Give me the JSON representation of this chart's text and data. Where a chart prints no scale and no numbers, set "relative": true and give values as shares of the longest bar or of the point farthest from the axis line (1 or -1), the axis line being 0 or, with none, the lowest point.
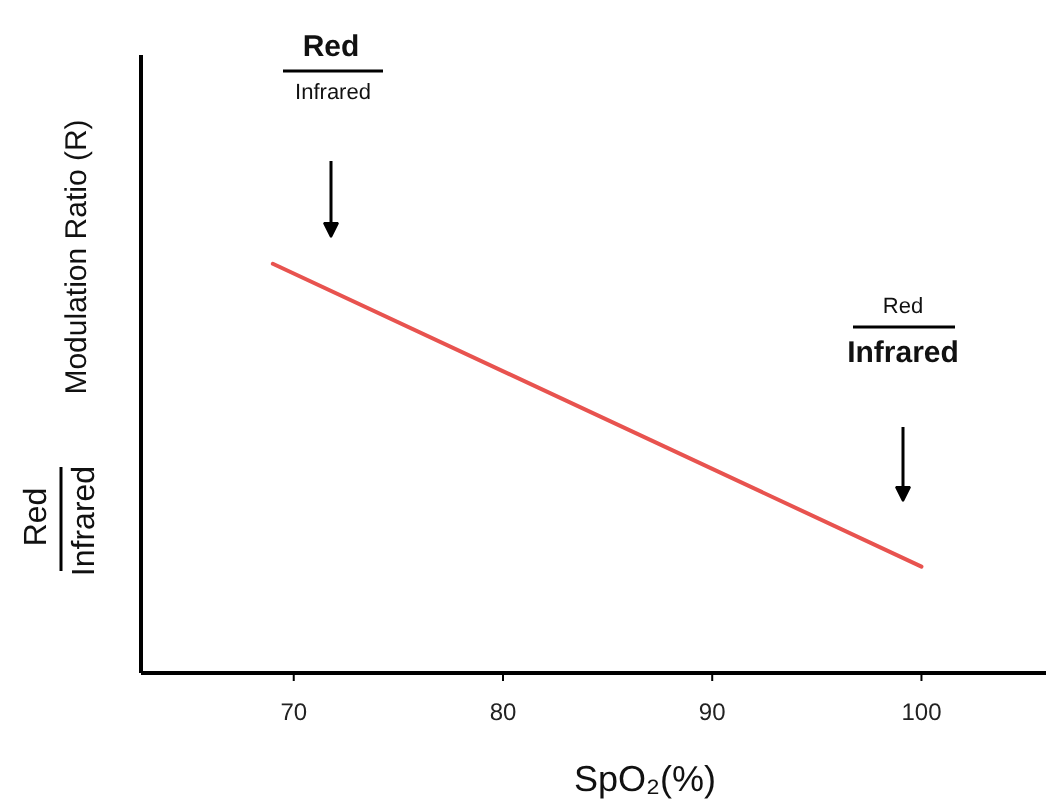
{
  "chart_data": {
    "type": "line",
    "relative": true,
    "xlabel": "SpO₂(%)",
    "ylabel": "Modulation Ratio (R)",
    "annotations": [
      "Red",
      "Infrared",
      "Red",
      "Infrared",
      "Red",
      "Infrared"
    ],
    "xlim": [
      62.7,
      106
    ],
    "xticks": [
      70,
      80,
      90,
      100
    ],
    "grid": false,
    "series": [
      {
        "color": "#e8534f",
        "x": [
          69,
          100
        ],
        "values": [
          1,
          0.26
        ]
      }
    ]
  }
}
